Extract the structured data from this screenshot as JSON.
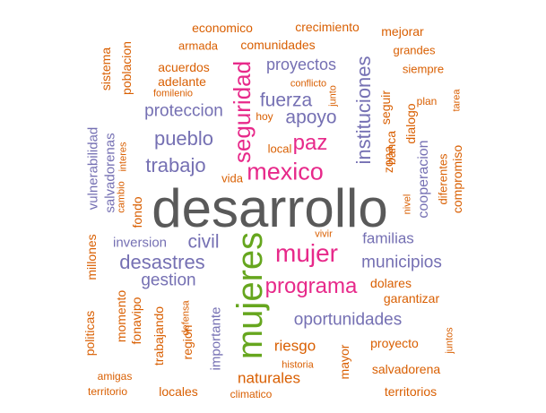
{
  "colors": {
    "gray": "#595959",
    "purple": "#7570b3",
    "orange": "#d95f02",
    "pink": "#e7298a",
    "green": "#66a61e"
  },
  "words": [
    {
      "text": "desarrollo",
      "color": "gray",
      "weight": "largest"
    },
    {
      "text": "mujeres",
      "color": "green",
      "weight": "very-large"
    },
    {
      "text": "mexico",
      "color": "pink",
      "weight": "large"
    },
    {
      "text": "mujer",
      "color": "pink",
      "weight": "large"
    },
    {
      "text": "programa",
      "color": "pink",
      "weight": "large"
    },
    {
      "text": "seguridad",
      "color": "pink",
      "weight": "large"
    },
    {
      "text": "paz",
      "color": "pink",
      "weight": "large"
    },
    {
      "text": "apoyo",
      "color": "purple",
      "weight": "medium"
    },
    {
      "text": "fuerza",
      "color": "purple",
      "weight": "medium"
    },
    {
      "text": "pueblo",
      "color": "purple",
      "weight": "medium"
    },
    {
      "text": "trabajo",
      "color": "purple",
      "weight": "medium"
    },
    {
      "text": "desastres",
      "color": "purple",
      "weight": "medium"
    },
    {
      "text": "municipios",
      "color": "purple",
      "weight": "medium"
    },
    {
      "text": "oportunidades",
      "color": "purple",
      "weight": "medium"
    },
    {
      "text": "instituciones",
      "color": "purple",
      "weight": "medium"
    },
    {
      "text": "proteccion",
      "color": "purple",
      "weight": "medium"
    },
    {
      "text": "proyectos",
      "color": "purple",
      "weight": "medium"
    },
    {
      "text": "civil",
      "color": "purple",
      "weight": "medium"
    },
    {
      "text": "gestion",
      "color": "purple",
      "weight": "medium"
    },
    {
      "text": "familias",
      "color": "purple",
      "weight": "medium"
    },
    {
      "text": "inversion",
      "color": "purple",
      "weight": "small"
    },
    {
      "text": "cooperacion",
      "color": "purple",
      "weight": "small"
    },
    {
      "text": "salvadorenas",
      "color": "purple",
      "weight": "small"
    },
    {
      "text": "importante",
      "color": "purple",
      "weight": "small"
    },
    {
      "text": "vulnerabilidad",
      "color": "purple",
      "weight": "small"
    },
    {
      "text": "economico",
      "color": "orange",
      "weight": "small"
    },
    {
      "text": "crecimiento",
      "color": "orange",
      "weight": "small"
    },
    {
      "text": "mejorar",
      "color": "orange",
      "weight": "small"
    },
    {
      "text": "armada",
      "color": "orange",
      "weight": "small"
    },
    {
      "text": "comunidades",
      "color": "orange",
      "weight": "small"
    },
    {
      "text": "grandes",
      "color": "orange",
      "weight": "small"
    },
    {
      "text": "acuerdos",
      "color": "orange",
      "weight": "small"
    },
    {
      "text": "siempre",
      "color": "orange",
      "weight": "small"
    },
    {
      "text": "adelante",
      "color": "orange",
      "weight": "small"
    },
    {
      "text": "conflicto",
      "color": "orange",
      "weight": "small"
    },
    {
      "text": "fomilenio",
      "color": "orange",
      "weight": "tiny"
    },
    {
      "text": "plan",
      "color": "orange",
      "weight": "tiny"
    },
    {
      "text": "hoy",
      "color": "orange",
      "weight": "tiny"
    },
    {
      "text": "local",
      "color": "orange",
      "weight": "small"
    },
    {
      "text": "vida",
      "color": "orange",
      "weight": "small"
    },
    {
      "text": "seguir",
      "color": "orange",
      "weight": "small"
    },
    {
      "text": "dialogo",
      "color": "orange",
      "weight": "small"
    },
    {
      "text": "zona",
      "color": "orange",
      "weight": "small"
    },
    {
      "text": "banca",
      "color": "orange",
      "weight": "small"
    },
    {
      "text": "nivel",
      "color": "orange",
      "weight": "tiny"
    },
    {
      "text": "diferentes",
      "color": "orange",
      "weight": "small"
    },
    {
      "text": "compromiso",
      "color": "orange",
      "weight": "small"
    },
    {
      "text": "fondo",
      "color": "orange",
      "weight": "small"
    },
    {
      "text": "millones",
      "color": "orange",
      "weight": "small"
    },
    {
      "text": "vivir",
      "color": "orange",
      "weight": "tiny"
    },
    {
      "text": "dolares",
      "color": "orange",
      "weight": "small"
    },
    {
      "text": "garantizar",
      "color": "orange",
      "weight": "small"
    },
    {
      "text": "momento",
      "color": "orange",
      "weight": "small"
    },
    {
      "text": "fonavipo",
      "color": "orange",
      "weight": "small"
    },
    {
      "text": "trabajando",
      "color": "orange",
      "weight": "small"
    },
    {
      "text": "defensa",
      "color": "orange",
      "weight": "tiny"
    },
    {
      "text": "region",
      "color": "orange",
      "weight": "small"
    },
    {
      "text": "riesgo",
      "color": "orange",
      "weight": "small"
    },
    {
      "text": "proyecto",
      "color": "orange",
      "weight": "small"
    },
    {
      "text": "politicas",
      "color": "orange",
      "weight": "small"
    },
    {
      "text": "mayor",
      "color": "orange",
      "weight": "small"
    },
    {
      "text": "juntos",
      "color": "orange",
      "weight": "tiny"
    },
    {
      "text": "historia",
      "color": "orange",
      "weight": "tiny"
    },
    {
      "text": "salvadorena",
      "color": "orange",
      "weight": "small"
    },
    {
      "text": "amigas",
      "color": "orange",
      "weight": "tiny"
    },
    {
      "text": "naturales",
      "color": "orange",
      "weight": "small"
    },
    {
      "text": "territorio",
      "color": "orange",
      "weight": "tiny"
    },
    {
      "text": "locales",
      "color": "orange",
      "weight": "small"
    },
    {
      "text": "climatico",
      "color": "orange",
      "weight": "tiny"
    },
    {
      "text": "territorios",
      "color": "orange",
      "weight": "small"
    },
    {
      "text": "sistema",
      "color": "orange",
      "weight": "small"
    },
    {
      "text": "poblacion",
      "color": "orange",
      "weight": "small"
    },
    {
      "text": "junto",
      "color": "orange",
      "weight": "tiny"
    },
    {
      "text": "tarea",
      "color": "orange",
      "weight": "tiny"
    },
    {
      "text": "cambio",
      "color": "orange",
      "weight": "tiny"
    },
    {
      "text": "interes",
      "color": "orange",
      "weight": "tiny"
    }
  ]
}
